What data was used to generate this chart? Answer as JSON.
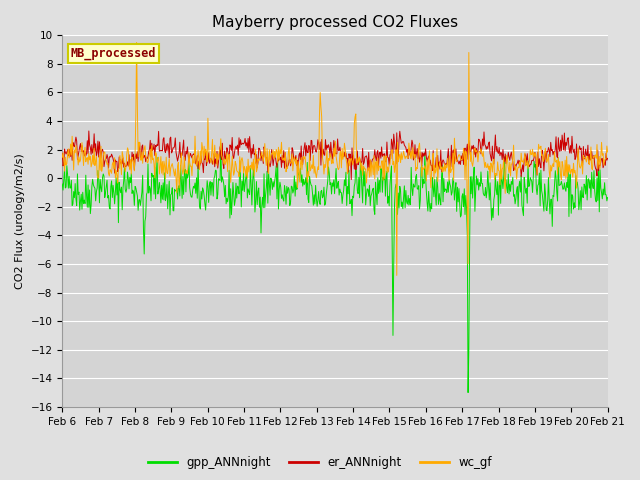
{
  "title": "Mayberry processed CO2 Fluxes",
  "ylabel": "CO2 Flux (urology/m2/s)",
  "ylim": [
    -16,
    10
  ],
  "yticks": [
    -16,
    -14,
    -12,
    -10,
    -8,
    -6,
    -4,
    -2,
    0,
    2,
    4,
    6,
    8,
    10
  ],
  "background_color": "#e0e0e0",
  "plot_bg_color": "#d4d4d4",
  "grid_color": "#ffffff",
  "legend_label": "MB_processed",
  "legend_text_color": "#8b0000",
  "legend_bg": "#ffffcc",
  "legend_edge": "#cccc00",
  "series": {
    "gpp_ANNnight": {
      "color": "#00dd00",
      "label": "gpp_ANNnight"
    },
    "er_ANNnight": {
      "color": "#cc0000",
      "label": "er_ANNnight"
    },
    "wc_gf": {
      "color": "#ffaa00",
      "label": "wc_gf"
    }
  },
  "date_labels": [
    "Feb 6",
    "Feb 7",
    "Feb 8",
    "Feb 9",
    "Feb 10",
    "Feb 11",
    "Feb 12",
    "Feb 13",
    "Feb 14",
    "Feb 15",
    "Feb 16",
    "Feb 17",
    "Feb 18",
    "Feb 19",
    "Feb 20",
    "Feb 21"
  ],
  "n_points": 720,
  "title_fontsize": 11,
  "axis_fontsize": 8,
  "tick_fontsize": 7.5
}
